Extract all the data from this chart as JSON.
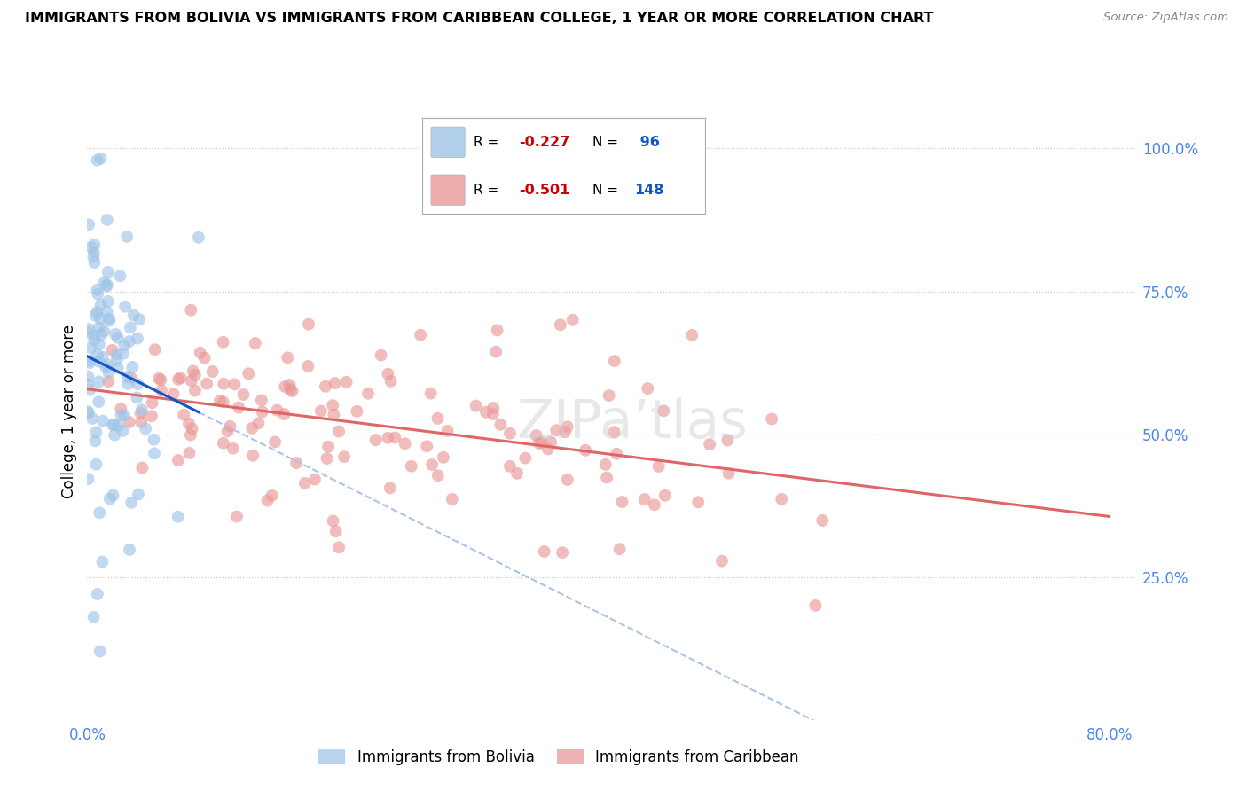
{
  "title": "IMMIGRANTS FROM BOLIVIA VS IMMIGRANTS FROM CARIBBEAN COLLEGE, 1 YEAR OR MORE CORRELATION CHART",
  "source": "Source: ZipAtlas.com",
  "ylabel_left": "College, 1 year or more",
  "xlim": [
    0.0,
    0.82
  ],
  "ylim": [
    0.0,
    1.08
  ],
  "bolivia_R": -0.227,
  "bolivia_N": 96,
  "caribbean_R": -0.501,
  "caribbean_N": 148,
  "bolivia_color": "#9fc5e8",
  "caribbean_color": "#ea9999",
  "bolivia_line_color": "#1155cc",
  "caribbean_line_color": "#e06666",
  "grid_color": "#cccccc",
  "watermark": "ZIPa’tlas",
  "background_color": "#ffffff",
  "bolivia_seed": 7,
  "caribbean_seed": 99,
  "right_tick_color": "#4a86e8",
  "xtick_color": "#4a86e8"
}
